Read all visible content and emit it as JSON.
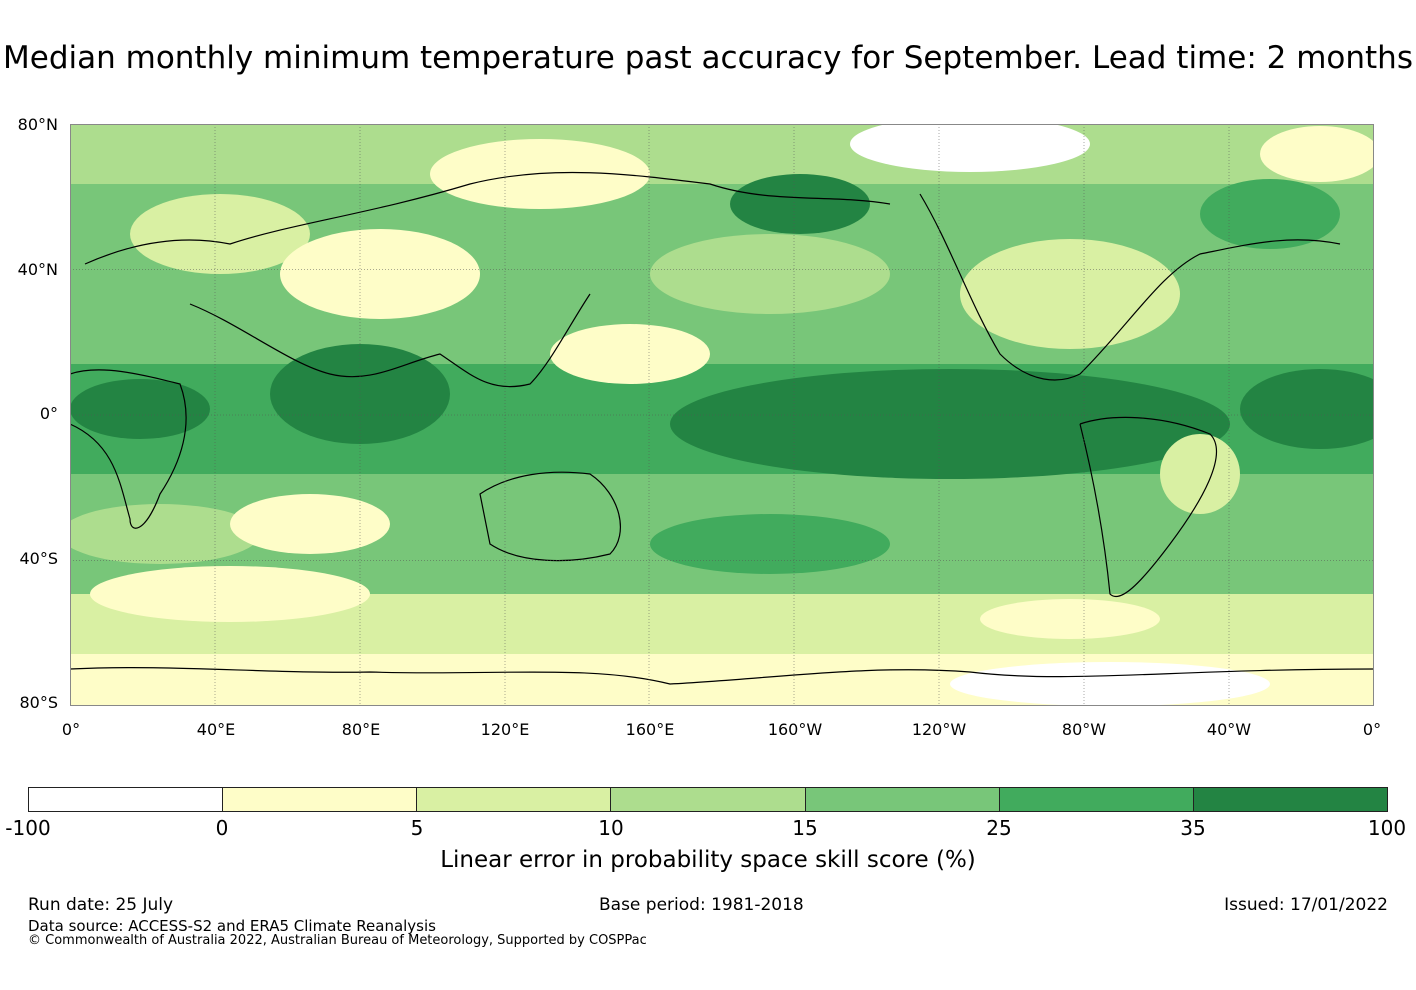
{
  "title": "Median monthly minimum temperature past accuracy for September. Lead time: 2 months",
  "map": {
    "lat_labels": [
      "80°N",
      "40°N",
      "0°",
      "40°S",
      "80°S"
    ],
    "lon_labels": [
      "0°",
      "40°E",
      "80°E",
      "120°E",
      "160°E",
      "160°W",
      "120°W",
      "80°W",
      "40°W",
      "0°"
    ],
    "ocean_color": "#2e8b4a",
    "land_outline_color": "#000000"
  },
  "colorbar": {
    "ticks": [
      "-100",
      "0",
      "5",
      "10",
      "15",
      "25",
      "35",
      "100"
    ],
    "colors": [
      "#ffffff",
      "#fefdc8",
      "#d9f0a3",
      "#addd8e",
      "#78c679",
      "#41ab5d",
      "#238443"
    ],
    "label": "Linear error in probability space skill score (%)"
  },
  "footer": {
    "run_date": "Run date: 25 July",
    "base_period": "Base period: 1981-2018",
    "issued": "Issued: 17/01/2022",
    "data_source": "Data source: ACCESS-S2 and ERA5 Climate Reanalysis",
    "copyright": "© Commonwealth of Australia 2022, Australian Bureau of Meteorology, Supported by COSPPac"
  }
}
